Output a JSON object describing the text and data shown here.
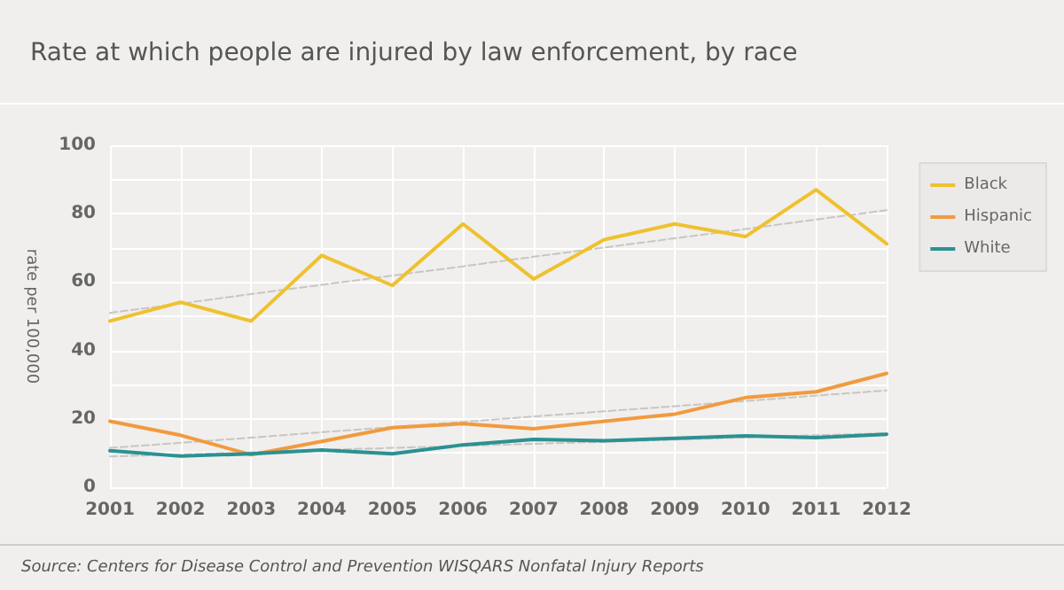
{
  "chart_data": {
    "type": "line",
    "title": "Rate at which people are injured by law enforcement, by race",
    "ylabel": "rate per 100,000",
    "categories": [
      "2001",
      "2002",
      "2003",
      "2004",
      "2005",
      "2006",
      "2007",
      "2008",
      "2009",
      "2010",
      "2011",
      "2012"
    ],
    "series": [
      {
        "name": "Black",
        "color": "#efc12f",
        "values": [
          48.6,
          54.1,
          48.6,
          67.8,
          59,
          77,
          60.9,
          72.4,
          77,
          73.3,
          87,
          71.2
        ]
      },
      {
        "name": "Hispanic",
        "color": "#f29a3e",
        "values": [
          19.3,
          15.2,
          9.5,
          13.4,
          17.4,
          18.6,
          17.1,
          19.3,
          21.4,
          26.2,
          27.9,
          33.3
        ]
      },
      {
        "name": "White",
        "color": "#2b9192",
        "values": [
          10.7,
          9.1,
          9.8,
          10.9,
          9.8,
          12.4,
          14,
          13.6,
          14.3,
          15,
          14.5,
          15.5
        ]
      },
      {
        "type": "line",
        "line_style": "dashed",
        "color": "#c8c6c2",
        "values": [
          51,
          53.7,
          56.5,
          59.2,
          61.9,
          64.6,
          67.4,
          70.1,
          72.8,
          75.5,
          78.3,
          81
        ]
      },
      {
        "type": "line",
        "line_style": "dashed",
        "color": "#c8c6c2",
        "values": [
          11.5,
          13.0,
          14.5,
          16.1,
          17.6,
          19.1,
          20.7,
          22.2,
          23.7,
          25.2,
          26.8,
          28.3
        ]
      },
      {
        "type": "line",
        "line_style": "dashed",
        "color": "#c8c6c2",
        "values": [
          9,
          9.6,
          10.2,
          10.9,
          11.5,
          12.1,
          12.7,
          13.3,
          13.9,
          14.6,
          15.2,
          15.8
        ]
      }
    ],
    "ylim": [
      0,
      100
    ],
    "yticks": [
      0,
      {
        "value": 10,
        "label": null
      },
      20,
      {
        "value": 30,
        "label": null
      },
      40,
      {
        "value": 50,
        "label": null
      },
      60,
      {
        "value": 70,
        "label": null
      },
      80,
      {
        "value": 90,
        "label": null
      },
      100
    ],
    "grid": true,
    "legend": "right",
    "marker": "none",
    "line_style": "solid",
    "annotations": [
      "Source: Centers for Disease Control and Prevention WISQARS Nonfatal Injury Reports"
    ]
  }
}
